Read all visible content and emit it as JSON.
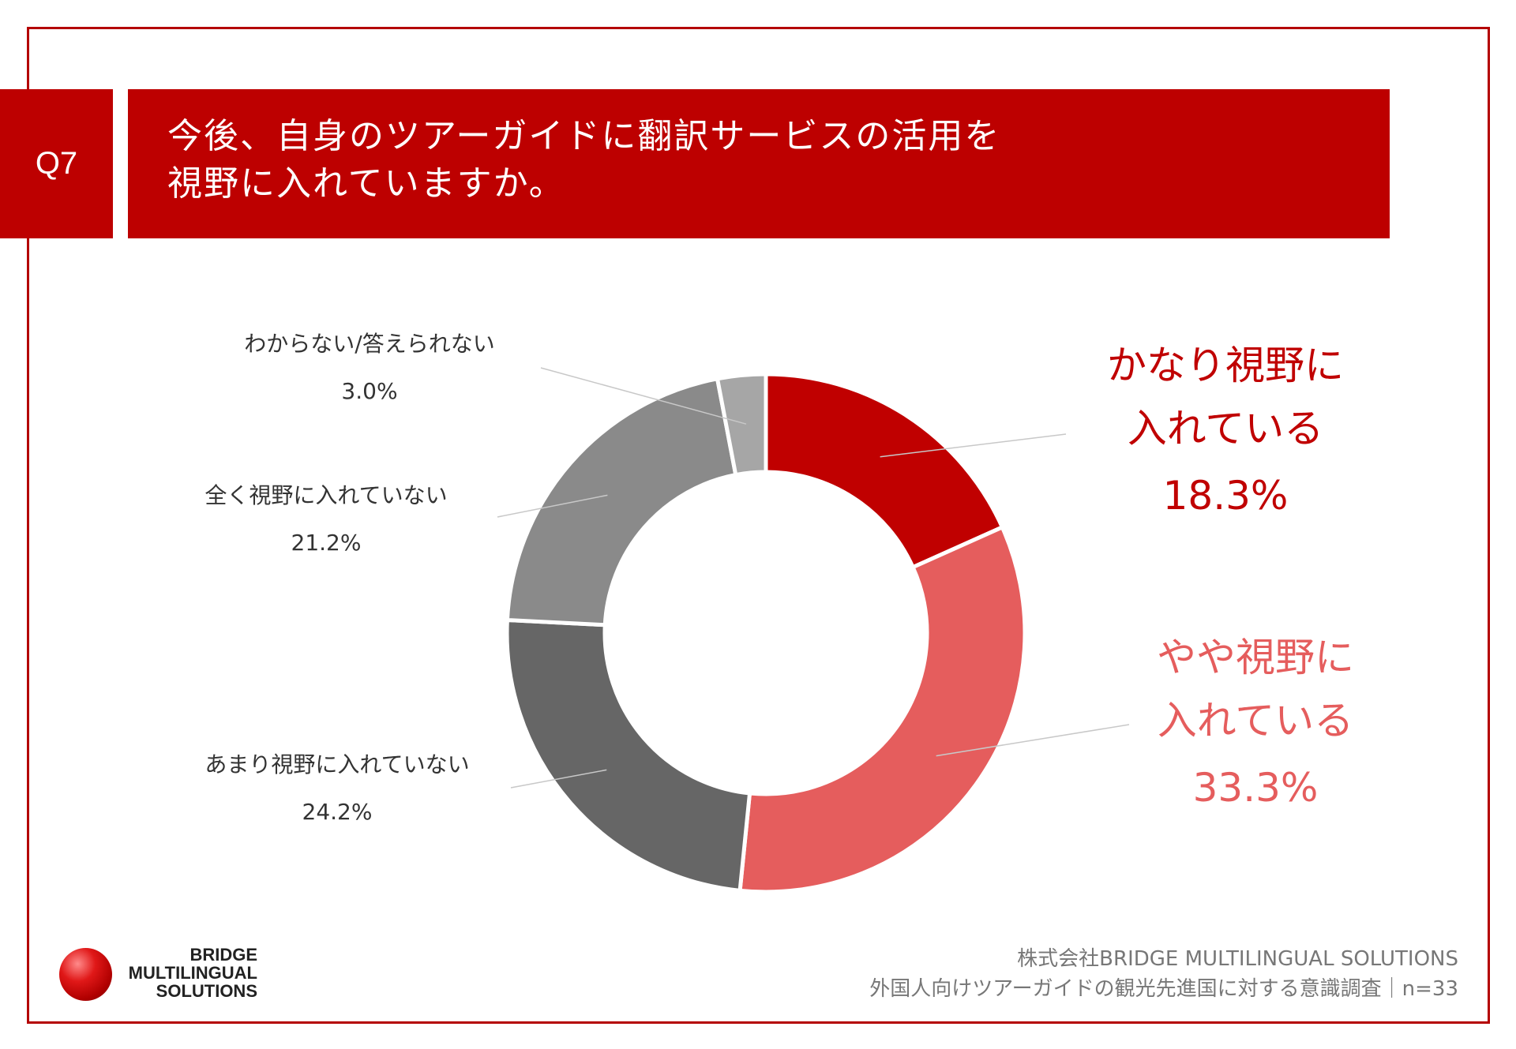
{
  "header": {
    "q_label": "Q7",
    "title_line1": "今後、自身のツアーガイドに翻訳サービスの活用を",
    "title_line2": "視野に入れていますか。"
  },
  "colors": {
    "brand_red": "#bd0000",
    "slice_colors": [
      "#c00000",
      "#e55d5d",
      "#666666",
      "#8a8a8a",
      "#a6a6a6"
    ]
  },
  "chart_data": {
    "type": "pie",
    "style": "donut",
    "categories": [
      "かなり視野に入れている",
      "やや視野に入れている",
      "あまり視野に入れていない",
      "全く視野に入れていない",
      "わからない/答えられない"
    ],
    "values": [
      18.3,
      33.3,
      24.2,
      21.2,
      3.0
    ],
    "unit": "%",
    "labels": {
      "kanari": {
        "line1": "かなり視野に",
        "line2": "入れている",
        "pct": "18.3%"
      },
      "yaya": {
        "line1": "やや視野に",
        "line2": "入れている",
        "pct": "33.3%"
      },
      "amari": {
        "line1": "あまり視野に入れていない",
        "pct": "24.2%"
      },
      "mattaku": {
        "line1": "全く視野に入れていない",
        "pct": "21.2%"
      },
      "wakaranai": {
        "line1": "わからない/答えられない",
        "pct": "3.0%"
      }
    }
  },
  "logo": {
    "line1": "BRIDGE",
    "line2": "MULTILINGUAL",
    "line3": "SOLUTIONS"
  },
  "footer": {
    "line1": "株式会社BRIDGE MULTILINGUAL SOLUTIONS",
    "line2": "外国人向けツアーガイドの観光先進国に対する意識調査｜n=33"
  }
}
